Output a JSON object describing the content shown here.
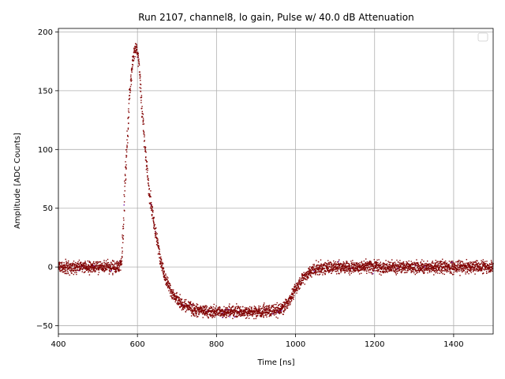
{
  "chart_data": {
    "type": "scatter",
    "title": "Run 2107, channel8, lo gain, Pulse w/ 40.0 dB Attenuation",
    "xlabel": "Time [ns]",
    "ylabel": "Amplitude [ADC Counts]",
    "xlim": [
      400,
      1500
    ],
    "ylim": [
      -57,
      203
    ],
    "xticks": [
      400,
      600,
      800,
      1000,
      1200,
      1400
    ],
    "yticks": [
      -50,
      0,
      50,
      100,
      150,
      200
    ],
    "grid": true,
    "legend": "top-right",
    "colors": {
      "points": "#800000",
      "accent_points": "#6a0dad"
    },
    "band_halfwidth": 6,
    "series": [
      {
        "x": [
          400,
          500,
          550,
          560,
          565,
          570,
          575,
          580,
          585,
          590,
          595,
          600,
          605,
          610,
          615,
          620,
          625,
          630,
          640,
          650,
          660,
          670,
          680,
          690,
          700,
          720,
          740,
          760,
          780,
          800,
          850,
          900,
          950,
          970,
          980,
          990,
          1000,
          1010,
          1020,
          1030,
          1040,
          1050,
          1070,
          1100,
          1150,
          1200,
          1300,
          1400,
          1500
        ],
        "y": [
          0,
          0,
          0,
          5,
          40,
          80,
          115,
          145,
          165,
          180,
          186,
          184,
          168,
          145,
          120,
          98,
          80,
          64,
          40,
          22,
          5,
          -8,
          -17,
          -24,
          -28,
          -33,
          -36,
          -37.5,
          -38,
          -38,
          -38,
          -38,
          -37,
          -35,
          -30,
          -25,
          -19,
          -14,
          -9,
          -6,
          -4,
          -2,
          -1,
          0,
          0,
          0,
          0,
          0,
          0
        ]
      }
    ]
  }
}
